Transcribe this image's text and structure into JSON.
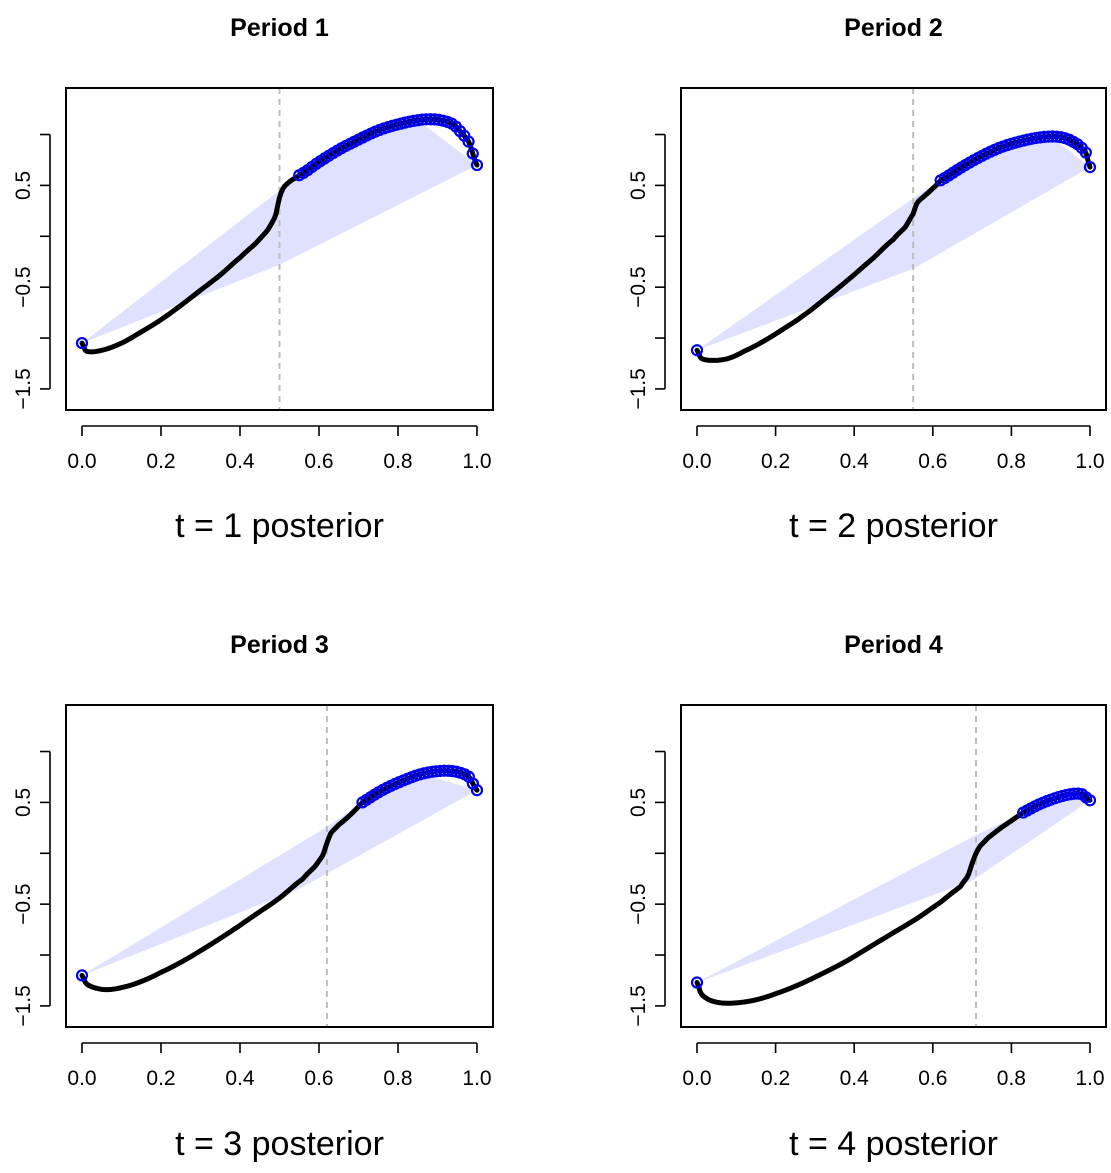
{
  "chart_data": [
    {
      "type": "line",
      "title": "Period 1",
      "xlabel": "t = 1 posterior",
      "ylabel": "",
      "xlim": [
        0,
        1
      ],
      "ylim": [
        -1.55,
        1.3
      ],
      "xticks": [
        "0.0",
        "0.2",
        "0.4",
        "0.6",
        "0.8",
        "1.0"
      ],
      "yticks": [
        "-1.5",
        "-0.5",
        "0.5"
      ],
      "ytick_values": [
        -1.5,
        -1.0,
        -0.5,
        0.0,
        0.5,
        1.0
      ],
      "reference_x": 0.5,
      "curve": {
        "x": [
          0,
          0.01,
          0.05,
          0.1,
          0.15,
          0.2,
          0.25,
          0.3,
          0.35,
          0.4,
          0.44,
          0.47,
          0.49,
          0.5,
          0.51,
          0.53,
          0.55,
          0.6,
          0.65,
          0.7,
          0.75,
          0.8,
          0.85,
          0.88,
          0.91,
          0.94,
          0.96,
          0.98,
          1.0
        ],
        "y": [
          -1.05,
          -1.13,
          -1.12,
          -1.05,
          -0.94,
          -0.82,
          -0.68,
          -0.53,
          -0.38,
          -0.21,
          -0.07,
          0.06,
          0.2,
          0.38,
          0.48,
          0.55,
          0.6,
          0.73,
          0.85,
          0.95,
          1.04,
          1.1,
          1.14,
          1.15,
          1.14,
          1.1,
          1.02,
          0.92,
          0.7
        ]
      },
      "highlighted": {
        "x_start": 0.55,
        "x_end": 1.0,
        "color": "#0000ee"
      },
      "band": {
        "color": "#e0e0ff",
        "upper": [
          [
            0,
            -1.05
          ],
          [
            0.55,
            0.6
          ],
          [
            0.7,
            0.95
          ],
          [
            0.85,
            1.14
          ],
          [
            1.0,
            0.7
          ]
        ],
        "lower": [
          [
            0,
            -1.05
          ],
          [
            0.5,
            -0.28
          ],
          [
            1.0,
            0.7
          ]
        ]
      }
    },
    {
      "type": "line",
      "title": "Period 2",
      "xlabel": "t = 2 posterior",
      "ylabel": "",
      "xlim": [
        0,
        1
      ],
      "ylim": [
        -1.55,
        1.3
      ],
      "xticks": [
        "0.0",
        "0.2",
        "0.4",
        "0.6",
        "0.8",
        "1.0"
      ],
      "yticks": [
        "-1.5",
        "-0.5",
        "0.5"
      ],
      "ytick_values": [
        -1.5,
        -1.0,
        -0.5,
        0.0,
        0.5,
        1.0
      ],
      "reference_x": 0.55,
      "curve": {
        "x": [
          0,
          0.01,
          0.04,
          0.08,
          0.12,
          0.17,
          0.22,
          0.27,
          0.33,
          0.39,
          0.45,
          0.5,
          0.53,
          0.55,
          0.56,
          0.58,
          0.6,
          0.62,
          0.67,
          0.72,
          0.77,
          0.82,
          0.87,
          0.91,
          0.94,
          0.97,
          0.99,
          1.0
        ],
        "y": [
          -1.12,
          -1.2,
          -1.22,
          -1.2,
          -1.13,
          -1.03,
          -0.91,
          -0.78,
          -0.6,
          -0.41,
          -0.21,
          -0.03,
          0.09,
          0.22,
          0.33,
          0.4,
          0.47,
          0.55,
          0.67,
          0.78,
          0.87,
          0.93,
          0.97,
          0.98,
          0.96,
          0.9,
          0.82,
          0.68
        ]
      },
      "highlighted": {
        "x_start": 0.62,
        "x_end": 1.0,
        "color": "#0000ee"
      },
      "band": {
        "color": "#e0e0ff",
        "upper": [
          [
            0,
            -1.12
          ],
          [
            0.56,
            0.4
          ],
          [
            0.62,
            0.55
          ],
          [
            0.77,
            0.87
          ],
          [
            0.9,
            0.98
          ],
          [
            1.0,
            0.68
          ]
        ],
        "lower": [
          [
            0,
            -1.12
          ],
          [
            0.55,
            -0.32
          ],
          [
            1.0,
            0.68
          ]
        ]
      }
    },
    {
      "type": "line",
      "title": "Period 3",
      "xlabel": "t = 3 posterior",
      "ylabel": "",
      "xlim": [
        0,
        1
      ],
      "ylim": [
        -1.55,
        1.3
      ],
      "xticks": [
        "0.0",
        "0.2",
        "0.4",
        "0.6",
        "0.8",
        "1.0"
      ],
      "yticks": [
        "-1.5",
        "-0.5",
        "0.5"
      ],
      "ytick_values": [
        -1.5,
        -1.0,
        -0.5,
        0.0,
        0.5,
        1.0
      ],
      "reference_x": 0.62,
      "curve": {
        "x": [
          0,
          0.01,
          0.03,
          0.06,
          0.1,
          0.15,
          0.2,
          0.26,
          0.32,
          0.38,
          0.44,
          0.5,
          0.56,
          0.59,
          0.61,
          0.62,
          0.63,
          0.65,
          0.68,
          0.71,
          0.76,
          0.81,
          0.86,
          0.91,
          0.95,
          0.98,
          1.0
        ],
        "y": [
          -1.2,
          -1.28,
          -1.32,
          -1.34,
          -1.32,
          -1.26,
          -1.17,
          -1.05,
          -0.91,
          -0.76,
          -0.6,
          -0.44,
          -0.25,
          -0.13,
          -0.02,
          0.1,
          0.2,
          0.28,
          0.38,
          0.5,
          0.62,
          0.71,
          0.78,
          0.81,
          0.8,
          0.75,
          0.62
        ]
      },
      "highlighted": {
        "x_start": 0.71,
        "x_end": 1.0,
        "color": "#0000ee"
      },
      "band": {
        "color": "#e0e0ff",
        "upper": [
          [
            0,
            -1.2
          ],
          [
            0.62,
            0.26
          ],
          [
            0.71,
            0.5
          ],
          [
            0.86,
            0.78
          ],
          [
            1.0,
            0.62
          ]
        ],
        "lower": [
          [
            0,
            -1.2
          ],
          [
            0.55,
            -0.35
          ],
          [
            1.0,
            0.62
          ]
        ]
      }
    },
    {
      "type": "line",
      "title": "Period 4",
      "xlabel": "t = 4 posterior",
      "ylabel": "",
      "xlim": [
        0,
        1
      ],
      "ylim": [
        -1.55,
        1.3
      ],
      "xticks": [
        "0.0",
        "0.2",
        "0.4",
        "0.6",
        "0.8",
        "1.0"
      ],
      "yticks": [
        "-1.5",
        "-0.5",
        "0.5"
      ],
      "ytick_values": [
        -1.5,
        -1.0,
        -0.5,
        0.0,
        0.5,
        1.0
      ],
      "reference_x": 0.71,
      "curve": {
        "x": [
          0,
          0.01,
          0.03,
          0.06,
          0.1,
          0.15,
          0.2,
          0.26,
          0.32,
          0.38,
          0.44,
          0.5,
          0.56,
          0.62,
          0.67,
          0.69,
          0.7,
          0.71,
          0.72,
          0.74,
          0.77,
          0.8,
          0.83,
          0.87,
          0.91,
          0.95,
          0.98,
          1.0
        ],
        "y": [
          -1.27,
          -1.38,
          -1.44,
          -1.47,
          -1.47,
          -1.44,
          -1.38,
          -1.29,
          -1.18,
          -1.06,
          -0.92,
          -0.78,
          -0.64,
          -0.48,
          -0.33,
          -0.22,
          -0.1,
          0.0,
          0.07,
          0.15,
          0.24,
          0.32,
          0.4,
          0.48,
          0.54,
          0.58,
          0.58,
          0.52
        ]
      },
      "highlighted": {
        "x_start": 0.83,
        "x_end": 1.0,
        "color": "#0000ee"
      },
      "band": {
        "color": "#e0e0ff",
        "upper": [
          [
            0,
            -1.27
          ],
          [
            0.71,
            0.18
          ],
          [
            0.83,
            0.4
          ],
          [
            0.96,
            0.58
          ],
          [
            1.0,
            0.52
          ]
        ],
        "lower": [
          [
            0,
            -1.27
          ],
          [
            0.7,
            -0.27
          ],
          [
            1.0,
            0.52
          ]
        ]
      }
    }
  ]
}
